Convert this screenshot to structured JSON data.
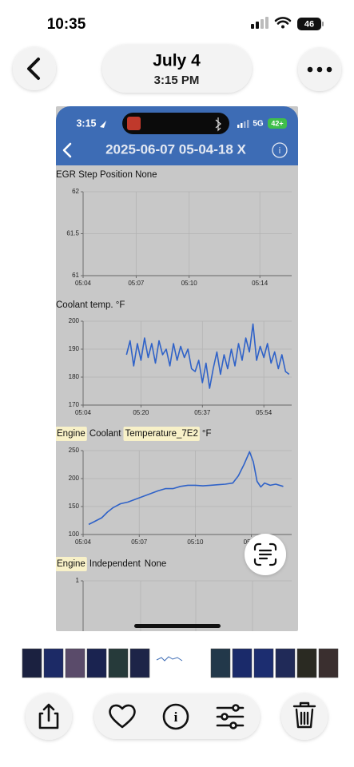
{
  "status_bar": {
    "time": "10:35",
    "battery": "46"
  },
  "header": {
    "title": "July 4",
    "subtitle": "3:15 PM"
  },
  "screenshot": {
    "status_bar": {
      "time": "3:15",
      "network": "5G",
      "battery": "42+"
    },
    "title": "2025-06-07 05-04-18 X",
    "charts": [
      {
        "type": "line",
        "title": "EGR Step Position  None",
        "ylim": [
          61,
          62
        ],
        "yticks": [
          61,
          61.5,
          62
        ],
        "xlim": [
          4,
          15.8
        ],
        "xticks": [
          {
            "value": 4,
            "label": "05:04"
          },
          {
            "value": 7,
            "label": "05:07"
          },
          {
            "value": 10,
            "label": "05:10"
          },
          {
            "value": 14,
            "label": "05:14"
          }
        ]
      },
      {
        "type": "line",
        "title": "Coolant temp.  °F",
        "color": "#2f62c8",
        "ylim": [
          170,
          200
        ],
        "yticks": [
          170,
          180,
          190,
          200
        ],
        "xlim": [
          4,
          61.7
        ],
        "xticks": [
          {
            "value": 4,
            "label": "05:04"
          },
          {
            "value": 20,
            "label": "05:20"
          },
          {
            "value": 37,
            "label": "05:37"
          },
          {
            "value": 54,
            "label": "05:54"
          }
        ],
        "x": [
          16,
          17,
          18,
          19,
          20,
          21,
          22,
          23,
          24,
          25,
          26,
          27,
          28,
          29,
          30,
          31,
          32,
          33,
          34,
          35,
          36,
          37,
          38,
          39,
          40,
          41,
          42,
          43,
          44,
          45,
          46,
          47,
          48,
          49,
          50,
          51,
          52,
          53,
          54,
          55,
          56,
          57,
          58,
          59,
          60,
          61
        ],
        "values": [
          188,
          193,
          184,
          192,
          186,
          194,
          187,
          192,
          185,
          193,
          188,
          190,
          184,
          192,
          186,
          191,
          187,
          190,
          183,
          182,
          186,
          178,
          185,
          176,
          183,
          189,
          181,
          188,
          183,
          190,
          184,
          192,
          186,
          194,
          189,
          199,
          186,
          191,
          187,
          192,
          185,
          189,
          183,
          188,
          182,
          181
        ]
      },
      {
        "type": "line",
        "title": [
          {
            "text": "Engine",
            "highlight": true
          },
          {
            "text": "Coolant"
          },
          {
            "text": "Temperature_7E2",
            "highlight": true
          },
          {
            "text": "°F"
          }
        ],
        "color": "#2f62c8",
        "ylim": [
          100,
          250
        ],
        "yticks": [
          100,
          150,
          200,
          250
        ],
        "xlim": [
          4,
          15.15
        ],
        "xticks": [
          {
            "value": 4,
            "label": "05:04"
          },
          {
            "value": 7,
            "label": "05:07"
          },
          {
            "value": 10,
            "label": "05:10"
          },
          {
            "value": 13,
            "label": "05:13"
          }
        ],
        "x": [
          4.3,
          4.6,
          5.0,
          5.3,
          5.6,
          6.0,
          6.4,
          6.8,
          7.2,
          7.6,
          8.0,
          8.4,
          8.8,
          9.2,
          9.6,
          10.0,
          10.4,
          10.8,
          11.2,
          11.6,
          12.0,
          12.3,
          12.6,
          12.9,
          13.1,
          13.3,
          13.5,
          13.7,
          14.0,
          14.3,
          14.7
        ],
        "values": [
          118,
          123,
          130,
          140,
          148,
          155,
          158,
          163,
          168,
          173,
          178,
          182,
          182,
          186,
          188,
          188,
          187,
          188,
          189,
          190,
          192,
          205,
          225,
          248,
          230,
          195,
          185,
          192,
          188,
          190,
          186
        ]
      },
      {
        "type": "line",
        "title": [
          {
            "text": "Engine",
            "highlight": true
          },
          {
            "text": "Independent"
          },
          {
            "text": "None"
          }
        ],
        "ylim": [
          0,
          1
        ],
        "yticks": [
          1
        ]
      }
    ]
  }
}
